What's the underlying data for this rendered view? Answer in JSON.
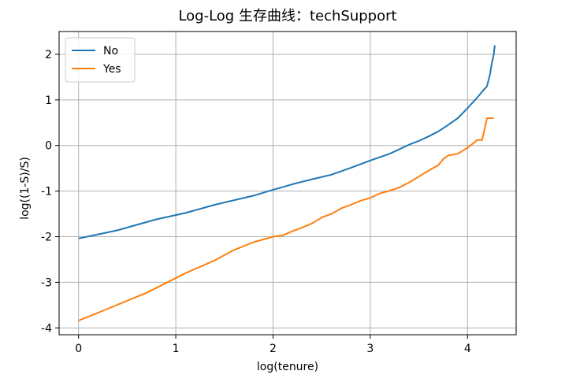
{
  "chart_data": {
    "type": "line",
    "title": "Log-Log 生存曲线：techSupport",
    "xlabel": "log(tenure)",
    "ylabel": "log((1-S)/S)",
    "xlim": [
      -0.2,
      4.5
    ],
    "ylim": [
      -4.15,
      2.5
    ],
    "xticks": [
      0,
      1,
      2,
      3,
      4
    ],
    "yticks": [
      -4,
      -3,
      -2,
      -1,
      0,
      1,
      2
    ],
    "grid": true,
    "legend": "top-left",
    "series": [
      {
        "name": "No",
        "color": "#1f77b4",
        "points": [
          [
            0,
            -2.04
          ],
          [
            0.4,
            -1.86
          ],
          [
            0.8,
            -1.62
          ],
          [
            1.1,
            -1.48
          ],
          [
            1.4,
            -1.3
          ],
          [
            1.8,
            -1.1
          ],
          [
            2.0,
            -0.97
          ],
          [
            2.2,
            -0.85
          ],
          [
            2.4,
            -0.74
          ],
          [
            2.6,
            -0.64
          ],
          [
            2.8,
            -0.49
          ],
          [
            3.0,
            -0.33
          ],
          [
            3.2,
            -0.18
          ],
          [
            3.4,
            0.02
          ],
          [
            3.5,
            0.1
          ],
          [
            3.6,
            0.2
          ],
          [
            3.7,
            0.31
          ],
          [
            3.8,
            0.45
          ],
          [
            3.9,
            0.6
          ],
          [
            4.0,
            0.82
          ],
          [
            4.1,
            1.05
          ],
          [
            4.15,
            1.18
          ],
          [
            4.2,
            1.3
          ],
          [
            4.23,
            1.55
          ],
          [
            4.25,
            1.8
          ],
          [
            4.27,
            2.0
          ],
          [
            4.28,
            2.2
          ]
        ]
      },
      {
        "name": "Yes",
        "color": "#ff7f0e",
        "points": [
          [
            0,
            -3.84
          ],
          [
            0.3,
            -3.58
          ],
          [
            0.7,
            -3.23
          ],
          [
            1.1,
            -2.8
          ],
          [
            1.4,
            -2.52
          ],
          [
            1.6,
            -2.29
          ],
          [
            1.8,
            -2.12
          ],
          [
            2.0,
            -2.0
          ],
          [
            2.1,
            -1.97
          ],
          [
            2.2,
            -1.88
          ],
          [
            2.3,
            -1.8
          ],
          [
            2.4,
            -1.71
          ],
          [
            2.5,
            -1.58
          ],
          [
            2.6,
            -1.5
          ],
          [
            2.7,
            -1.38
          ],
          [
            2.8,
            -1.3
          ],
          [
            2.9,
            -1.21
          ],
          [
            3.0,
            -1.15
          ],
          [
            3.1,
            -1.05
          ],
          [
            3.2,
            -0.99
          ],
          [
            3.3,
            -0.92
          ],
          [
            3.4,
            -0.81
          ],
          [
            3.5,
            -0.68
          ],
          [
            3.6,
            -0.55
          ],
          [
            3.7,
            -0.43
          ],
          [
            3.75,
            -0.3
          ],
          [
            3.8,
            -0.22
          ],
          [
            3.9,
            -0.18
          ],
          [
            4.0,
            -0.05
          ],
          [
            4.1,
            0.12
          ],
          [
            4.15,
            0.12
          ],
          [
            4.2,
            0.6
          ],
          [
            4.27,
            0.6
          ]
        ]
      }
    ]
  }
}
